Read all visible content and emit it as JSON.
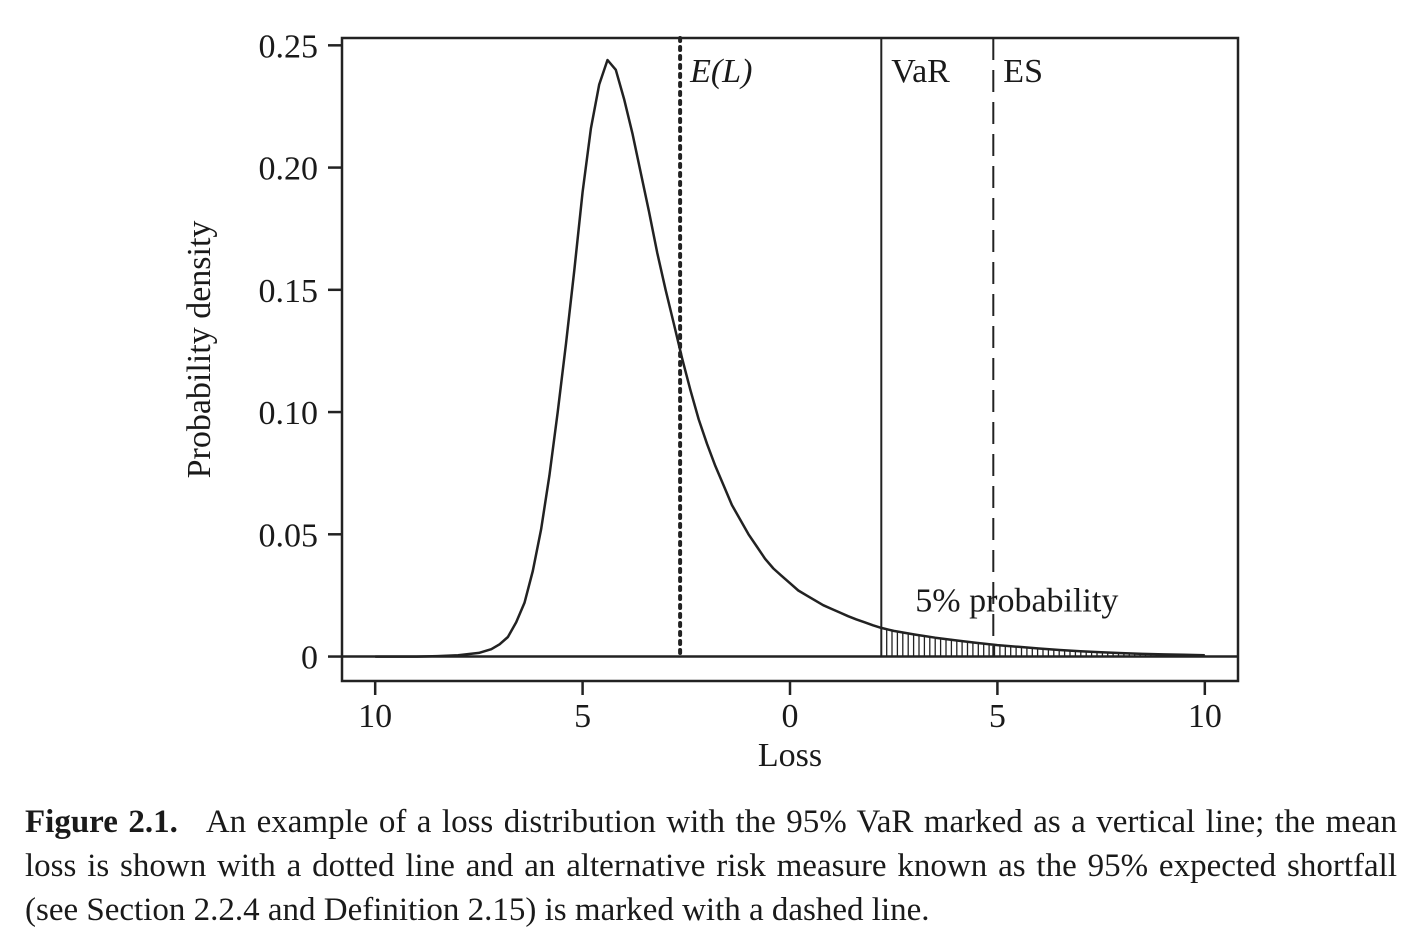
{
  "chart_data": {
    "type": "line",
    "xlabel": "Loss",
    "ylabel": "Probability density",
    "xlim": [
      -10.8,
      10.8
    ],
    "ylim": [
      -0.01,
      0.253
    ],
    "x_ticks": [
      -10,
      -5,
      0,
      5,
      10
    ],
    "x_tick_labels": [
      "10",
      "5",
      "0",
      "5",
      "10"
    ],
    "y_ticks": [
      0,
      0.05,
      0.1,
      0.15,
      0.2,
      0.25
    ],
    "y_tick_labels": [
      "0",
      "0.05",
      "0.10",
      "0.15",
      "0.20",
      "0.25"
    ],
    "grid": false,
    "series": [
      {
        "x": [
          -10,
          -9,
          -8.5,
          -8,
          -7.5,
          -7.2,
          -7,
          -6.8,
          -6.6,
          -6.4,
          -6.2,
          -6,
          -5.8,
          -5.6,
          -5.4,
          -5.2,
          -5,
          -4.8,
          -4.6,
          -4.4,
          -4.2,
          -4,
          -3.8,
          -3.6,
          -3.4,
          -3.2,
          -3,
          -2.8,
          -2.6,
          -2.4,
          -2.2,
          -2,
          -1.8,
          -1.6,
          -1.4,
          -1.2,
          -1,
          -0.8,
          -0.6,
          -0.4,
          -0.2,
          0,
          0.2,
          0.4,
          0.6,
          0.8,
          1,
          1.2,
          1.4,
          1.6,
          1.8,
          2,
          2.2,
          2.5,
          3,
          3.5,
          4,
          4.5,
          5,
          5.5,
          6,
          6.5,
          7,
          7.5,
          8,
          8.5,
          9,
          9.5,
          10
        ],
        "y": [
          0,
          0,
          0.0002,
          0.0005,
          0.0015,
          0.003,
          0.005,
          0.008,
          0.014,
          0.022,
          0.035,
          0.052,
          0.074,
          0.1,
          0.128,
          0.158,
          0.19,
          0.216,
          0.234,
          0.244,
          0.24,
          0.228,
          0.214,
          0.198,
          0.182,
          0.165,
          0.15,
          0.136,
          0.122,
          0.109,
          0.097,
          0.087,
          0.078,
          0.07,
          0.062,
          0.056,
          0.05,
          0.045,
          0.04,
          0.036,
          0.033,
          0.03,
          0.027,
          0.025,
          0.023,
          0.021,
          0.0195,
          0.018,
          0.0165,
          0.0152,
          0.014,
          0.0128,
          0.0117,
          0.0105,
          0.009,
          0.0077,
          0.0066,
          0.0056,
          0.0047,
          0.004,
          0.0033,
          0.0027,
          0.0022,
          0.0018,
          0.0014,
          0.0011,
          0.0009,
          0.0007,
          0.0005
        ]
      }
    ],
    "markers": [
      {
        "label": "E(L)",
        "x": -2.65,
        "style": "dotted"
      },
      {
        "label": "VaR",
        "x": 2.2,
        "style": "solid"
      },
      {
        "label": "ES",
        "x": 4.9,
        "style": "dashed"
      }
    ],
    "annotation": "5% probability",
    "shaded_from_x": 2.2
  },
  "caption": {
    "label": "Figure 2.1.",
    "text": "An example of a loss distribution with the 95% VaR marked as a vertical line; the mean loss is shown with a dotted line and an alternative risk measure known as the 95% expected shortfall (see Section 2.2.4 and Definition 2.15) is marked with a dashed line."
  }
}
